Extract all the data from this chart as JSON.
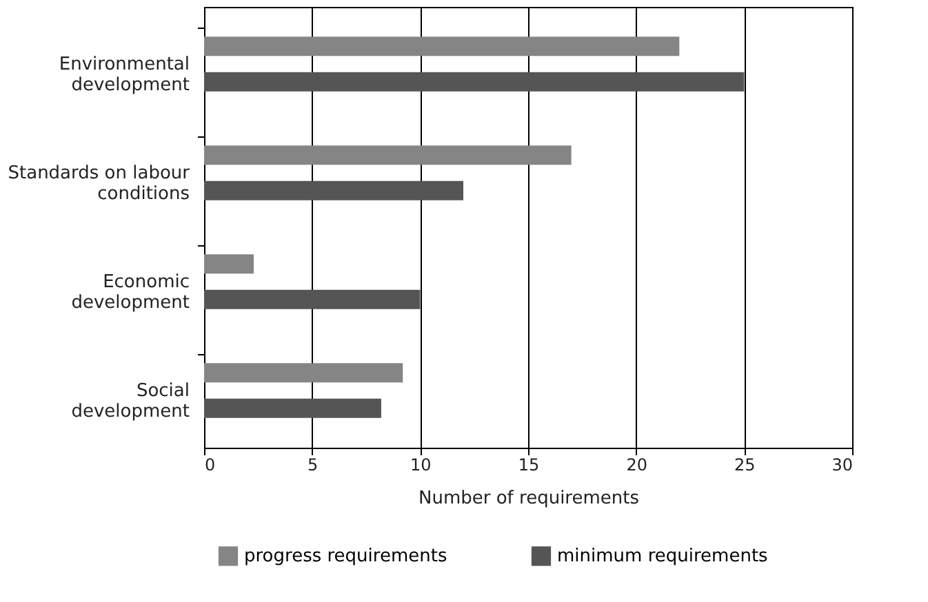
{
  "chart_data": {
    "type": "bar",
    "orientation": "horizontal",
    "xlabel": "Number of requirements",
    "categories": [
      "Environmental\ndevelopment",
      "Standards on labour\nconditions",
      "Economic\ndevelopment",
      "Social\ndevelopment"
    ],
    "series": [
      {
        "name": "progress requirements",
        "color": "#858585",
        "values": [
          22,
          17,
          2.3,
          9.2
        ]
      },
      {
        "name": "minimum requirements",
        "color": "#555555",
        "values": [
          25,
          12,
          10,
          8.2
        ]
      }
    ],
    "xlim": [
      0,
      30
    ],
    "xticks": [
      0,
      5,
      10,
      15,
      20,
      25,
      30
    ],
    "grid": "x",
    "legend": "bottom"
  }
}
